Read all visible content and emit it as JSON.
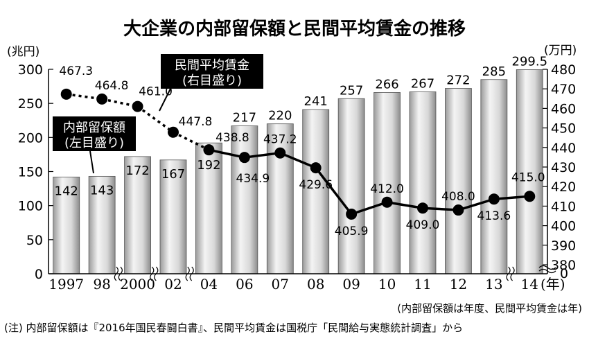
{
  "title": "大企業の内部留保額と民間平均賃金の推移",
  "left_unit": "(兆円)",
  "right_unit": "(万円)",
  "year_suffix": "(年)",
  "callout_line": [
    "民間平均賃金",
    "(右目盛り)"
  ],
  "callout_bar": [
    "内部留保額",
    "(左目盛り)"
  ],
  "note_basis": "(内部留保額は年度、民間平均賃金は年)",
  "note_source": "(注) 内部留保額は『2016年国民春闘白書』、民間平均賃金は国税庁「民間給与実態統計調査」から",
  "chart_data": {
    "type": "bar+line",
    "categories": [
      "1997",
      "98",
      "2000",
      "02",
      "04",
      "06",
      "07",
      "08",
      "09",
      "10",
      "11",
      "12",
      "13",
      "14"
    ],
    "axis_break_after": [
      "98",
      "2000",
      "02",
      "13"
    ],
    "series": [
      {
        "name": "内部留保額",
        "type": "bar",
        "axis": "left",
        "values": [
          142,
          143,
          172,
          167,
          192,
          217,
          220,
          241,
          257,
          266,
          267,
          272,
          285,
          299.5
        ],
        "labels": [
          "142",
          "143",
          "172",
          "167",
          "192",
          "217",
          "220",
          "241",
          "257",
          "266",
          "267",
          "272",
          "285",
          "299.5"
        ]
      },
      {
        "name": "民間平均賃金",
        "type": "line",
        "axis": "right",
        "values": [
          467.3,
          464.8,
          461.0,
          447.8,
          438.8,
          434.9,
          437.2,
          429.6,
          405.9,
          412.0,
          409.0,
          408.0,
          413.6,
          415.0
        ],
        "labels": [
          "467.3",
          "464.8",
          "461.0",
          "447.8",
          "438.8",
          "434.9",
          "437.2",
          "429.6",
          "405.9",
          "412.0",
          "409.0",
          "408.0",
          "413.6",
          "415.0"
        ],
        "dashed_until_index": 4
      }
    ],
    "left_axis": {
      "min": 0,
      "max": 300,
      "ticks": [
        0,
        50,
        100,
        150,
        200,
        250,
        300
      ]
    },
    "right_axis": {
      "min": 380,
      "max": 480,
      "ticks": [
        380,
        390,
        400,
        410,
        420,
        430,
        440,
        450,
        460,
        470,
        480
      ],
      "zero_label": "0"
    },
    "grid": false
  }
}
